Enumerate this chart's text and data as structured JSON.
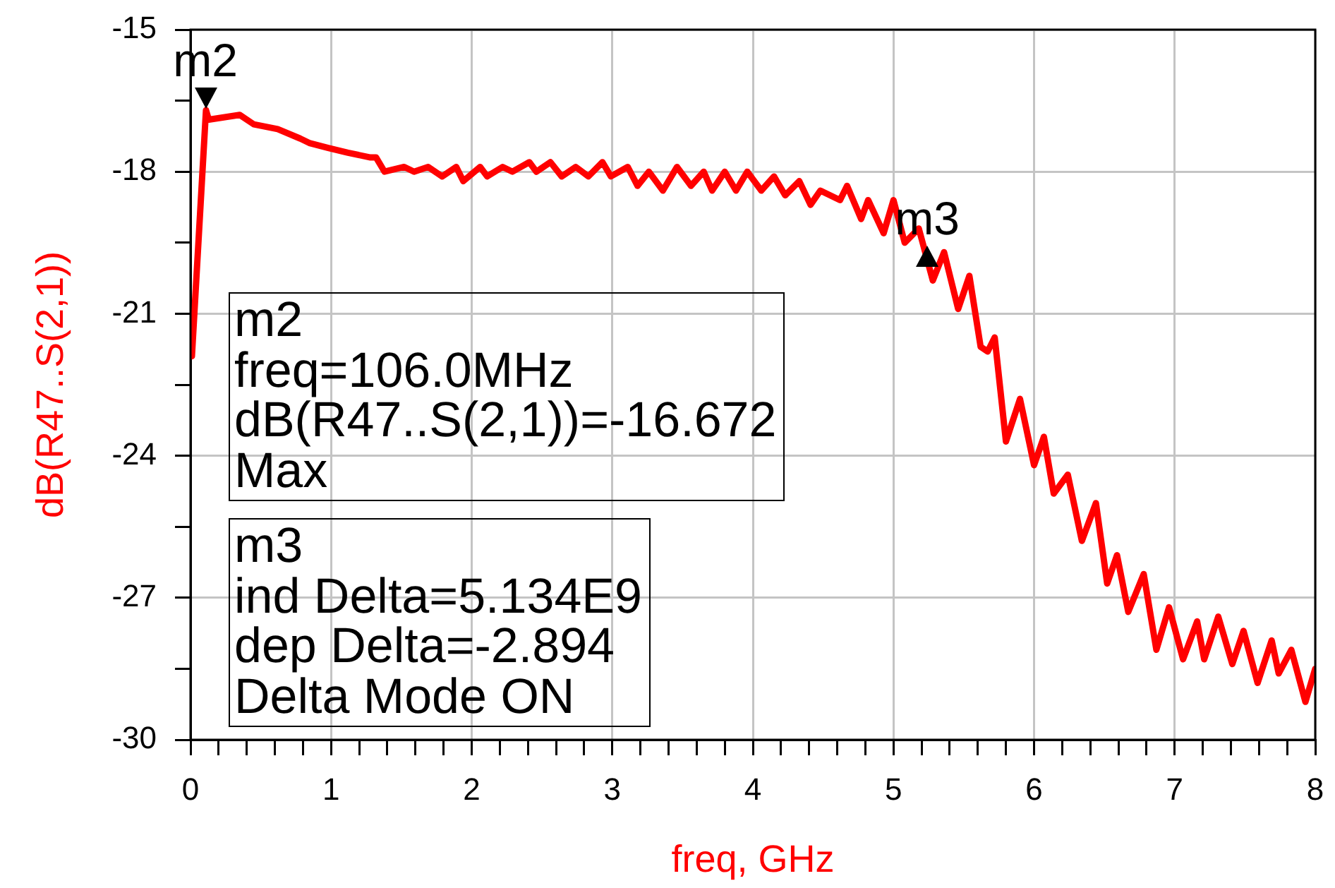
{
  "chart_data": {
    "type": "line",
    "xlabel": "freq, GHz",
    "ylabel": "dB(R47..S(2,1))",
    "color": "#ff0000",
    "x": [
      0.01,
      0.11,
      0.13,
      0.35,
      0.45,
      0.62,
      0.78,
      0.85,
      0.98,
      1.12,
      1.28,
      1.32,
      1.38,
      1.52,
      1.59,
      1.69,
      1.79,
      1.89,
      1.94,
      2.06,
      2.11,
      2.22,
      2.29,
      2.41,
      2.46,
      2.56,
      2.64,
      2.74,
      2.83,
      2.93,
      2.99,
      3.11,
      3.18,
      3.26,
      3.36,
      3.46,
      3.56,
      3.65,
      3.71,
      3.8,
      3.88,
      3.96,
      4.06,
      4.15,
      4.23,
      4.33,
      4.41,
      4.48,
      4.62,
      4.67,
      4.77,
      4.82,
      4.93,
      5.0,
      5.08,
      5.18,
      5.28,
      5.36,
      5.46,
      5.54,
      5.62,
      5.67,
      5.72,
      5.8,
      5.9,
      6.0,
      6.07,
      6.14,
      6.24,
      6.34,
      6.44,
      6.52,
      6.59,
      6.67,
      6.78,
      6.87,
      6.96,
      7.06,
      7.16,
      7.21,
      7.31,
      7.41,
      7.49,
      7.59,
      7.69,
      7.74,
      7.83,
      7.93,
      8.0
    ],
    "values": [
      -21.9,
      -16.7,
      -16.9,
      -16.8,
      -17.0,
      -17.1,
      -17.3,
      -17.4,
      -17.5,
      -17.6,
      -17.7,
      -17.7,
      -18.0,
      -17.9,
      -18.0,
      -17.9,
      -18.1,
      -17.9,
      -18.2,
      -17.9,
      -18.1,
      -17.9,
      -18.0,
      -17.8,
      -18.0,
      -17.8,
      -18.1,
      -17.9,
      -18.1,
      -17.8,
      -18.1,
      -17.9,
      -18.3,
      -18.0,
      -18.4,
      -17.9,
      -18.3,
      -18.0,
      -18.4,
      -18.0,
      -18.4,
      -18.0,
      -18.4,
      -18.1,
      -18.5,
      -18.2,
      -18.7,
      -18.4,
      -18.6,
      -18.3,
      -19.0,
      -18.6,
      -19.3,
      -18.6,
      -19.5,
      -19.2,
      -20.3,
      -19.7,
      -20.9,
      -20.2,
      -21.7,
      -21.8,
      -21.5,
      -23.7,
      -22.8,
      -24.2,
      -23.6,
      -24.8,
      -24.4,
      -25.8,
      -25.0,
      -26.7,
      -26.1,
      -27.3,
      -26.5,
      -28.1,
      -27.2,
      -28.3,
      -27.5,
      -28.3,
      -27.4,
      -28.4,
      -27.7,
      -28.8,
      -27.9,
      -28.6,
      -28.1,
      -29.2,
      -28.5
    ],
    "xlim": [
      0,
      8
    ],
    "ylim": [
      -30,
      -15
    ],
    "xticks": [
      0,
      {
        "value": 0.2,
        "label": null
      },
      {
        "value": 0.4,
        "label": null
      },
      {
        "value": 0.6,
        "label": null
      },
      {
        "value": 0.8,
        "label": null
      },
      1,
      {
        "value": 1.2,
        "label": null
      },
      {
        "value": 1.4,
        "label": null
      },
      {
        "value": 1.6,
        "label": null
      },
      {
        "value": 1.8,
        "label": null
      },
      2,
      {
        "value": 2.2,
        "label": null
      },
      {
        "value": 2.4,
        "label": null
      },
      {
        "value": 2.6,
        "label": null
      },
      {
        "value": 2.8,
        "label": null
      },
      3,
      {
        "value": 3.2,
        "label": null
      },
      {
        "value": 3.4,
        "label": null
      },
      {
        "value": 3.6,
        "label": null
      },
      {
        "value": 3.8,
        "label": null
      },
      4,
      {
        "value": 4.2,
        "label": null
      },
      {
        "value": 4.4,
        "label": null
      },
      {
        "value": 4.6,
        "label": null
      },
      {
        "value": 4.8,
        "label": null
      },
      5,
      {
        "value": 5.2,
        "label": null
      },
      {
        "value": 5.4,
        "label": null
      },
      {
        "value": 5.6,
        "label": null
      },
      {
        "value": 5.8,
        "label": null
      },
      6,
      {
        "value": 6.2,
        "label": null
      },
      {
        "value": 6.4,
        "label": null
      },
      {
        "value": 6.6,
        "label": null
      },
      {
        "value": 6.8,
        "label": null
      },
      7,
      {
        "value": 7.2,
        "label": null
      },
      {
        "value": 7.4,
        "label": null
      },
      {
        "value": 7.6,
        "label": null
      },
      {
        "value": 7.8,
        "label": null
      },
      8
    ],
    "yticks": [
      -30,
      {
        "value": -28.5,
        "label": null
      },
      -27,
      {
        "value": -25.5,
        "label": null
      },
      -24,
      {
        "value": -22.5,
        "label": null
      },
      -21,
      {
        "value": -19.5,
        "label": null
      },
      -18,
      {
        "value": -16.5,
        "label": null
      },
      -15
    ],
    "grid": true,
    "annotations": [
      {
        "text": "m2",
        "x": 0.106,
        "y": -16.672
      },
      {
        "text": "m3",
        "x": 5.24,
        "y": -19.566
      },
      "m2\nfreq=106.0MHz\ndB(R47..S(2,1))=-16.672\nMax",
      "m3\nind Delta=5.134E9\ndep Delta=-2.894\nDelta Mode ON"
    ]
  }
}
